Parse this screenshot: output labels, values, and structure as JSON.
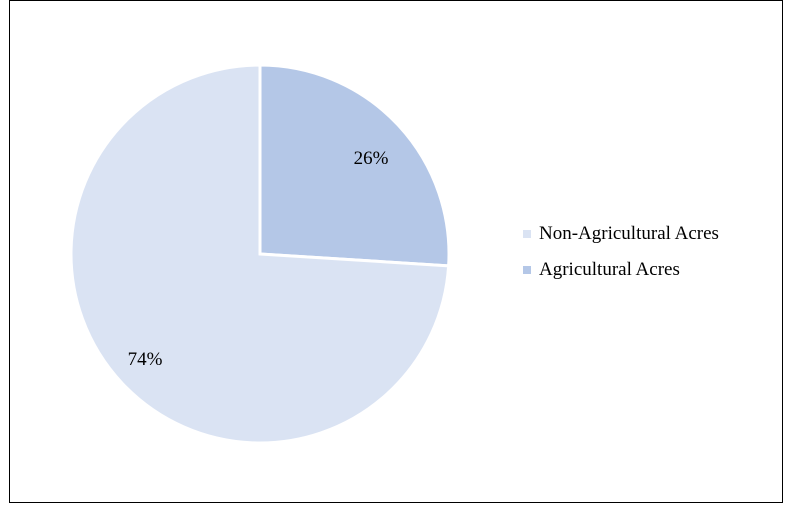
{
  "chart_data": {
    "type": "pie",
    "title": "",
    "legend_position": "right",
    "slices": [
      {
        "name": "Agricultural Acres",
        "value": 26,
        "label": "26%",
        "color": "#b4c7e7"
      },
      {
        "name": "Non-Agricultural Acres",
        "value": 74,
        "label": "74%",
        "color": "#dae3f3"
      }
    ],
    "legend": [
      {
        "name": "Non-Agricultural Acres",
        "color": "#dae3f3"
      },
      {
        "name": "Agricultural Acres",
        "color": "#b4c7e7"
      }
    ]
  }
}
